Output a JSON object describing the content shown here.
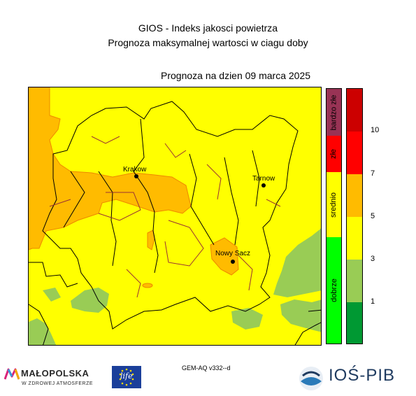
{
  "header": {
    "title_line1": "GIOS - Indeks jakosci powietrza",
    "title_line2": "Prognoza maksymalnej wartosci w ciagu doby",
    "forecast_date": "Prognoza na dzien  09 marca 2025"
  },
  "map": {
    "region": "Malopolska",
    "cities": [
      {
        "name": "Krakow"
      },
      {
        "name": "Tarnow"
      },
      {
        "name": "Nowy Sacz"
      }
    ],
    "fill_colors": {
      "dobrze": "#99cc55",
      "srednio": "#ffff00",
      "zle_orange": "#ffbb00"
    }
  },
  "legend": {
    "categories": [
      {
        "label": "bardzo złe",
        "color": "#993355"
      },
      {
        "label": "złe",
        "color": "#ff0000"
      },
      {
        "label": "srednio",
        "color": "#ffff00"
      },
      {
        "label": "dobrze",
        "color": "#00ff00"
      }
    ],
    "scale_colors": [
      "#cc0000",
      "#ff0000",
      "#ffbb00",
      "#ffff00",
      "#99cc55",
      "#009933"
    ],
    "ticks": [
      "10",
      "7",
      "5",
      "3",
      "1"
    ]
  },
  "footer": {
    "model": "GEM-AQ v332--d",
    "malopolska_name": "MAŁOPOLSKA",
    "malopolska_tagline": "W ZDROWEJ ATMOSFERZE",
    "eu_life": "life",
    "ios_name": "IOŚ-PIB"
  }
}
